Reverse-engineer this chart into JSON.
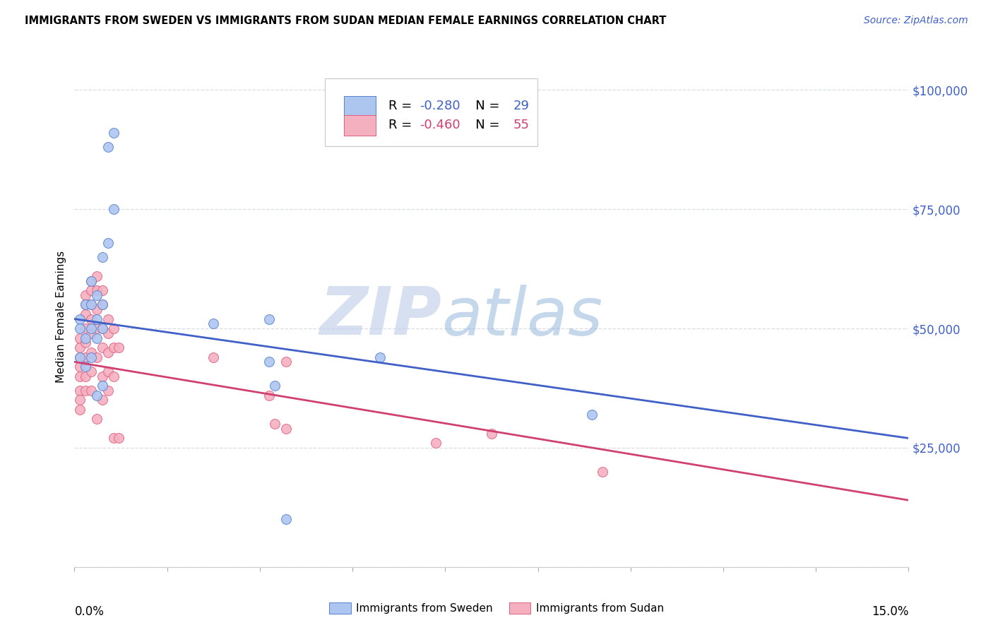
{
  "title": "IMMIGRANTS FROM SWEDEN VS IMMIGRANTS FROM SUDAN MEDIAN FEMALE EARNINGS CORRELATION CHART",
  "source": "Source: ZipAtlas.com",
  "ylabel": "Median Female Earnings",
  "xmin": 0.0,
  "xmax": 0.15,
  "ymin": 0,
  "ymax": 105000,
  "yticks": [
    0,
    25000,
    50000,
    75000,
    100000
  ],
  "ytick_labels": [
    "",
    "$25,000",
    "$50,000",
    "$75,000",
    "$100,000"
  ],
  "sweden_fill": "#adc6f0",
  "sudan_fill": "#f5b0c0",
  "sweden_edge": "#5580d0",
  "sudan_edge": "#e06080",
  "sweden_line": "#4060c8",
  "sudan_line": "#d04070",
  "sweden_R": "-0.280",
  "sweden_N": "29",
  "sudan_R": "-0.460",
  "sudan_N": "55",
  "grid_color": "#d8dde8",
  "sweden_line_y0": 52000,
  "sweden_line_y1": 27000,
  "sudan_line_y0": 43000,
  "sudan_line_y1": 14000,
  "sweden_x": [
    0.001,
    0.001,
    0.001,
    0.002,
    0.002,
    0.002,
    0.003,
    0.003,
    0.003,
    0.003,
    0.004,
    0.004,
    0.004,
    0.004,
    0.005,
    0.005,
    0.005,
    0.005,
    0.006,
    0.006,
    0.007,
    0.007,
    0.025,
    0.035,
    0.035,
    0.036,
    0.055,
    0.093,
    0.038
  ],
  "sweden_y": [
    52000,
    50000,
    44000,
    55000,
    48000,
    42000,
    60000,
    55000,
    50000,
    44000,
    57000,
    52000,
    48000,
    36000,
    65000,
    55000,
    50000,
    38000,
    68000,
    88000,
    91000,
    75000,
    51000,
    52000,
    43000,
    38000,
    44000,
    32000,
    10000
  ],
  "sudan_x": [
    0.001,
    0.001,
    0.001,
    0.001,
    0.001,
    0.001,
    0.001,
    0.001,
    0.002,
    0.002,
    0.002,
    0.002,
    0.002,
    0.002,
    0.002,
    0.002,
    0.003,
    0.003,
    0.003,
    0.003,
    0.003,
    0.003,
    0.003,
    0.003,
    0.004,
    0.004,
    0.004,
    0.004,
    0.004,
    0.004,
    0.005,
    0.005,
    0.005,
    0.005,
    0.005,
    0.005,
    0.006,
    0.006,
    0.006,
    0.006,
    0.006,
    0.007,
    0.007,
    0.007,
    0.007,
    0.008,
    0.008,
    0.025,
    0.035,
    0.036,
    0.038,
    0.038,
    0.065,
    0.075,
    0.095
  ],
  "sudan_y": [
    48000,
    46000,
    44000,
    42000,
    40000,
    37000,
    35000,
    33000,
    57000,
    55000,
    53000,
    50000,
    47000,
    44000,
    40000,
    37000,
    60000,
    58000,
    55000,
    52000,
    49000,
    45000,
    41000,
    37000,
    61000,
    58000,
    54000,
    50000,
    44000,
    31000,
    58000,
    55000,
    50000,
    46000,
    40000,
    35000,
    52000,
    49000,
    45000,
    41000,
    37000,
    50000,
    46000,
    40000,
    27000,
    46000,
    27000,
    44000,
    36000,
    30000,
    43000,
    29000,
    26000,
    28000,
    20000
  ]
}
